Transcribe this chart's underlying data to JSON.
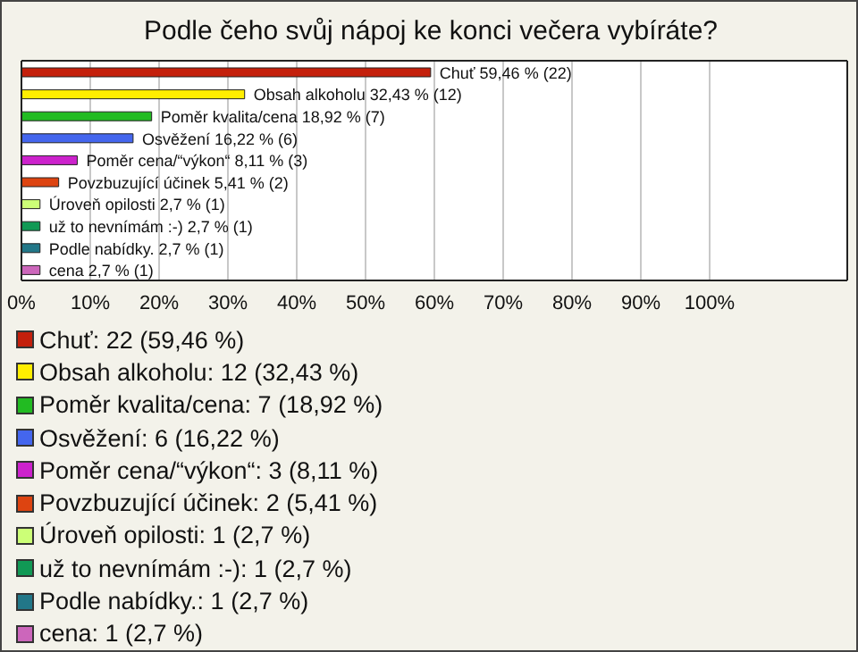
{
  "chart_data": {
    "type": "bar",
    "orientation": "horizontal",
    "stacked": true,
    "title": "Podle čeho svůj nápoj ke konci večera vybíráte?",
    "categories": [
      null,
      null,
      null,
      null,
      null,
      null,
      null,
      null,
      null,
      null
    ],
    "series": [
      {
        "name": "Chuť: 22 (59,46 %)",
        "color": "#c4200c",
        "values": [
          59.46,
          null,
          null,
          null,
          null,
          null,
          null,
          null,
          null,
          null
        ],
        "value_labels": [
          "Chuť 59,46 % (22)",
          null,
          null,
          null,
          null,
          null,
          null,
          null,
          null,
          null
        ]
      },
      {
        "name": "Obsah alkoholu: 12 (32,43 %)",
        "color": "#ffee00",
        "values": [
          null,
          32.43,
          null,
          null,
          null,
          null,
          null,
          null,
          null,
          null
        ],
        "value_labels": [
          null,
          "Obsah alkoholu 32,43 % (12)",
          null,
          null,
          null,
          null,
          null,
          null,
          null,
          null
        ]
      },
      {
        "name": "Poměr kvalita/cena: 7 (18,92 %)",
        "color": "#22bb22",
        "values": [
          null,
          null,
          18.92,
          null,
          null,
          null,
          null,
          null,
          null,
          null
        ],
        "value_labels": [
          null,
          null,
          "Poměr kvalita/cena 18,92 % (7)",
          null,
          null,
          null,
          null,
          null,
          null,
          null
        ]
      },
      {
        "name": "Osvěžení: 6 (16,22 %)",
        "color": "#4466ee",
        "values": [
          null,
          null,
          null,
          16.22,
          null,
          null,
          null,
          null,
          null,
          null
        ],
        "value_labels": [
          null,
          null,
          null,
          "Osvěžení 16,22 % (6)",
          null,
          null,
          null,
          null,
          null,
          null
        ]
      },
      {
        "name": "Poměr cena/“výkon“: 3 (8,11 %)",
        "color": "#cc22cc",
        "values": [
          null,
          null,
          null,
          null,
          8.11,
          null,
          null,
          null,
          null,
          null
        ],
        "value_labels": [
          null,
          null,
          null,
          null,
          "Poměr cena/“výkon“ 8,11 % (3)",
          null,
          null,
          null,
          null,
          null
        ]
      },
      {
        "name": "Povzbuzující účinek: 2 (5,41 %)",
        "color": "#dd4411",
        "values": [
          null,
          null,
          null,
          null,
          null,
          5.41,
          null,
          null,
          null,
          null
        ],
        "value_labels": [
          null,
          null,
          null,
          null,
          null,
          "Povzbuzující účinek 5,41 % (2)",
          null,
          null,
          null,
          null
        ]
      },
      {
        "name": "Úroveň opilosti: 1 (2,7 %)",
        "color": "#ccff77",
        "values": [
          null,
          null,
          null,
          null,
          null,
          null,
          2.7,
          null,
          null,
          null
        ],
        "value_labels": [
          null,
          null,
          null,
          null,
          null,
          null,
          "Úroveň opilosti 2,7 % (1)",
          null,
          null,
          null
        ]
      },
      {
        "name": "už to nevnímám :-): 1 (2,7 %)",
        "color": "#119955",
        "values": [
          null,
          null,
          null,
          null,
          null,
          null,
          null,
          2.7,
          null,
          null
        ],
        "value_labels": [
          null,
          null,
          null,
          null,
          null,
          null,
          null,
          "už to nevnímám :-) 2,7 % (1)",
          null,
          null
        ]
      },
      {
        "name": "Podle nabídky.: 1 (2,7 %)",
        "color": "#227788",
        "values": [
          null,
          null,
          null,
          null,
          null,
          null,
          null,
          null,
          2.7,
          null
        ],
        "value_labels": [
          null,
          null,
          null,
          null,
          null,
          null,
          null,
          null,
          "Podle nabídky. 2,7 % (1)",
          null
        ]
      },
      {
        "name": "cena: 1 (2,7 %)",
        "color": "#cc66bb",
        "values": [
          null,
          null,
          null,
          null,
          null,
          null,
          null,
          null,
          null,
          2.7
        ],
        "value_labels": [
          null,
          null,
          null,
          null,
          null,
          null,
          null,
          null,
          null,
          "cena 2,7 % (1)"
        ]
      }
    ],
    "xlim": [
      0,
      120
    ],
    "xticks": [
      {
        "value": 0,
        "label": "0%"
      },
      {
        "value": 10,
        "label": "10%"
      },
      {
        "value": 20,
        "label": "20%"
      },
      {
        "value": 30,
        "label": "30%"
      },
      {
        "value": 40,
        "label": "40%"
      },
      {
        "value": 50,
        "label": "50%"
      },
      {
        "value": 60,
        "label": "60%"
      },
      {
        "value": 70,
        "label": "70%"
      },
      {
        "value": 80,
        "label": "80%"
      },
      {
        "value": 90,
        "label": "90%"
      },
      {
        "value": 100,
        "label": "100%"
      }
    ],
    "grid": "x",
    "legend": "bottom"
  }
}
